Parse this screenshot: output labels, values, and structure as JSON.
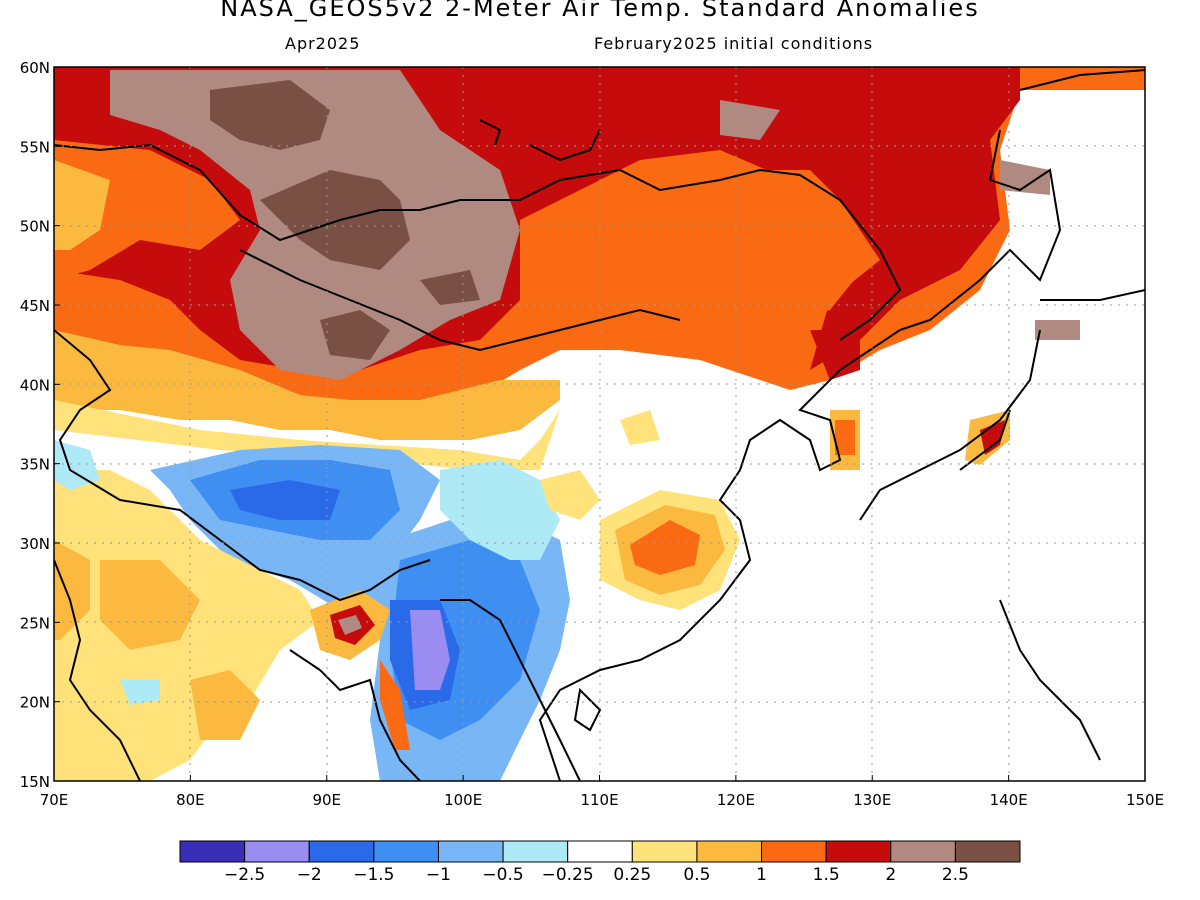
{
  "header": {
    "title": "NASA_GEOS5v2 2-Meter Air Temp. Standard Anomalies",
    "valid_month": "Apr2025",
    "init": "February2025 initial conditions"
  },
  "axes": {
    "lon_ticks": [
      "70E",
      "80E",
      "90E",
      "100E",
      "110E",
      "120E",
      "130E",
      "140E",
      "150E"
    ],
    "lon_values": [
      70,
      80,
      90,
      100,
      110,
      120,
      130,
      140,
      150
    ],
    "lat_ticks": [
      "15N",
      "20N",
      "25N",
      "30N",
      "35N",
      "40N",
      "45N",
      "50N",
      "55N",
      "60N"
    ],
    "lat_values": [
      15,
      20,
      25,
      30,
      35,
      40,
      45,
      50,
      55,
      60
    ]
  },
  "colorbar": {
    "labels": [
      "-2.5",
      "-2",
      "-1.5",
      "-1",
      "-0.5",
      "-0.25",
      "0.25",
      "0.5",
      "1",
      "1.5",
      "2",
      "2.5"
    ],
    "colors": [
      "#3a2db8",
      "#9a8cf0",
      "#2a6ae8",
      "#3f8ef2",
      "#78b6f5",
      "#aeeaf6",
      "#ffffff",
      "#ffe27a",
      "#fbb940",
      "#f96a12",
      "#c50b0b",
      "#b08a80",
      "#7a5045"
    ]
  },
  "map_regions": [
    {
      "name": "siberia-warm",
      "lon": [
        70,
        150
      ],
      "lat": [
        52,
        60
      ],
      "anomaly_class": "1.5-2"
    },
    {
      "name": "mongolia-warm-core",
      "lon": [
        85,
        105
      ],
      "lat": [
        42,
        58
      ],
      "anomaly_class": "2-2.5"
    },
    {
      "name": "tibet-cold",
      "lon": [
        80,
        105
      ],
      "lat": [
        27,
        37
      ],
      "anomaly_class": "-1.5--1"
    },
    {
      "name": "myanmar-cold-core",
      "lon": [
        96,
        99
      ],
      "lat": [
        21,
        24
      ],
      "anomaly_class": "-2.5--2"
    },
    {
      "name": "central-china-warm",
      "lon": [
        111,
        118
      ],
      "lat": [
        27,
        32
      ],
      "anomaly_class": "1-1.5"
    },
    {
      "name": "india-warm",
      "lon": [
        70,
        90
      ],
      "lat": [
        15,
        33
      ],
      "anomaly_class": "0.25-1"
    }
  ]
}
